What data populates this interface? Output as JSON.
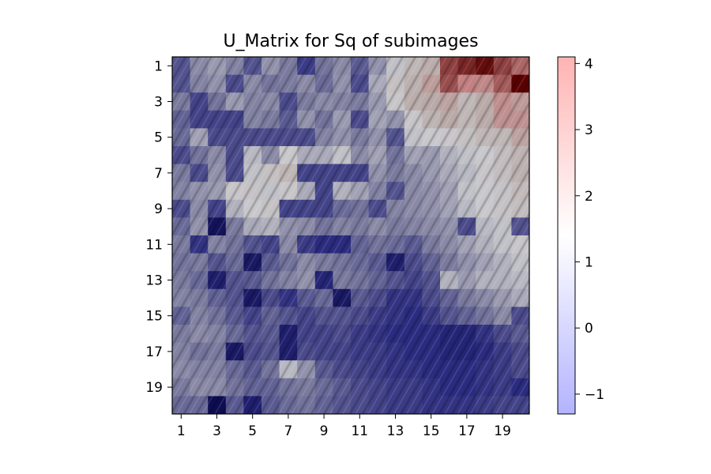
{
  "chart_data": {
    "type": "heatmap",
    "title": "U_Matrix for Sq of subimages",
    "xlabel": "",
    "ylabel": "",
    "x_ticks": [
      "1",
      "3",
      "5",
      "7",
      "9",
      "11",
      "13",
      "15",
      "17",
      "19"
    ],
    "y_ticks": [
      "1",
      "3",
      "5",
      "7",
      "9",
      "11",
      "13",
      "15",
      "17",
      "19"
    ],
    "grid": false,
    "colorbar": {
      "ticks": [
        "4",
        "3",
        "2",
        "1",
        "0",
        "−1"
      ],
      "tick_values": [
        4,
        3,
        2,
        1,
        0,
        -1
      ],
      "range": [
        -1.3,
        4.1
      ],
      "colors": {
        "low": "#b3b3ff",
        "mid": "#ffffff",
        "high": "#ffb3b3"
      }
    },
    "cell_palette": {
      "-1.5": "#0d0d52",
      "-1": "#2b2b80",
      "0": "#7a7a9e",
      "1": "#c8c8cc",
      "2": "#b9aaa8",
      "3": "#c28080",
      "4": "#5a0000"
    },
    "rows": [
      [
        -0.5,
        0.2,
        0.4,
        0.1,
        -0.5,
        0.3,
        0.0,
        -0.8,
        -0.1,
        0.2,
        -0.4,
        0.3,
        0.9,
        1.6,
        1.9,
        3.5,
        3.7,
        3.9,
        3.5,
        3.2
      ],
      [
        -0.5,
        0.1,
        0.3,
        -0.6,
        0.2,
        -0.1,
        0.0,
        0.2,
        -0.2,
        0.3,
        -0.6,
        0.6,
        1.3,
        1.8,
        2.3,
        3.4,
        3.0,
        2.8,
        3.3,
        4.1
      ],
      [
        0.0,
        -0.7,
        -0.1,
        0.4,
        0.1,
        0.2,
        -0.6,
        0.0,
        0.2,
        0.1,
        0.0,
        0.4,
        1.1,
        1.9,
        2.0,
        2.2,
        1.6,
        2.0,
        2.7,
        2.4
      ],
      [
        -0.3,
        -0.7,
        -0.7,
        -0.7,
        0.1,
        0.0,
        -0.4,
        0.3,
        -0.1,
        0.4,
        -0.6,
        0.5,
        0.3,
        1.1,
        1.7,
        2.0,
        1.6,
        2.0,
        2.6,
        2.6
      ],
      [
        -0.2,
        0.5,
        -0.6,
        -0.6,
        -0.6,
        -0.6,
        -0.6,
        -0.6,
        0.1,
        0.3,
        0.0,
        0.3,
        -0.5,
        0.9,
        1.0,
        1.1,
        1.3,
        1.6,
        1.6,
        2.2
      ],
      [
        -0.6,
        -0.1,
        0.2,
        -0.6,
        0.8,
        0.2,
        1.0,
        0.6,
        0.6,
        0.9,
        0.2,
        0.5,
        -0.1,
        0.5,
        0.4,
        0.7,
        0.9,
        1.0,
        1.4,
        1.7
      ],
      [
        0.0,
        -0.6,
        0.3,
        -0.6,
        0.9,
        1.3,
        1.6,
        -0.7,
        -0.7,
        -0.7,
        -0.7,
        0.3,
        0.0,
        0.2,
        0.4,
        0.6,
        0.8,
        1.1,
        1.4,
        1.8
      ],
      [
        0.1,
        0.3,
        0.4,
        1.1,
        1.2,
        0.9,
        1.1,
        0.6,
        -0.7,
        0.7,
        0.5,
        0.1,
        -0.5,
        0.2,
        0.3,
        0.5,
        0.9,
        1.0,
        1.2,
        1.5
      ],
      [
        -0.6,
        0.2,
        -0.7,
        0.7,
        1.0,
        1.2,
        -0.7,
        -0.7,
        -0.7,
        -0.2,
        -0.1,
        -0.6,
        0.1,
        0.2,
        0.3,
        0.5,
        0.8,
        1.0,
        1.2,
        1.4
      ],
      [
        -0.2,
        0.3,
        -1.4,
        0.0,
        0.6,
        0.7,
        0.3,
        0.2,
        -0.1,
        0.1,
        0.0,
        0.2,
        0.0,
        0.1,
        0.2,
        0.3,
        -0.6,
        0.8,
        0.9,
        -0.5
      ],
      [
        0.0,
        -0.9,
        0.1,
        -0.1,
        -0.5,
        -0.7,
        0.2,
        -0.8,
        -1.0,
        -1.0,
        -0.3,
        -0.1,
        -0.2,
        -0.4,
        0.0,
        0.2,
        0.5,
        0.7,
        0.9,
        1.1
      ],
      [
        -0.1,
        0.0,
        -0.5,
        -0.2,
        -1.3,
        -0.4,
        -0.1,
        0.2,
        0.0,
        -0.1,
        -0.2,
        -0.4,
        -1.2,
        -0.6,
        -0.3,
        0.0,
        0.3,
        0.5,
        0.7,
        0.9
      ],
      [
        0.0,
        -0.2,
        -1.2,
        -0.5,
        -0.4,
        -0.1,
        0.1,
        0.3,
        -1.1,
        0.0,
        -0.1,
        -0.3,
        -0.5,
        -0.7,
        -0.5,
        0.7,
        0.4,
        0.7,
        0.7,
        0.8
      ],
      [
        0.1,
        0.0,
        -0.3,
        -0.5,
        -1.3,
        -0.6,
        -0.9,
        -0.4,
        -0.2,
        -1.3,
        -0.4,
        -0.6,
        -0.9,
        -0.9,
        -0.6,
        -0.3,
        0.0,
        0.2,
        0.4,
        0.6
      ],
      [
        -0.3,
        0.1,
        -0.1,
        -0.4,
        -0.7,
        -0.3,
        -0.5,
        -0.7,
        -0.5,
        -0.5,
        -0.6,
        -0.8,
        -0.9,
        -1.0,
        -0.8,
        -0.5,
        -0.3,
        -0.1,
        0.2,
        -0.6
      ],
      [
        0.0,
        0.2,
        0.1,
        -0.2,
        -0.5,
        -0.4,
        -1.2,
        -0.7,
        -0.7,
        -0.6,
        -0.8,
        -0.9,
        -1.0,
        -1.0,
        -1.0,
        -1.1,
        -1.1,
        -0.9,
        -0.6,
        -0.4
      ],
      [
        0.1,
        -0.1,
        0.0,
        -1.3,
        -0.6,
        -0.5,
        -1.2,
        -0.6,
        -0.7,
        -0.7,
        -0.8,
        -0.8,
        -0.9,
        -1.0,
        -1.0,
        -1.1,
        -1.1,
        -1.0,
        -0.8,
        -0.6
      ],
      [
        0.2,
        0.1,
        0.1,
        -0.2,
        -0.4,
        -0.1,
        0.8,
        0.3,
        -0.4,
        -0.6,
        -0.7,
        -0.8,
        -0.9,
        -0.9,
        -1.0,
        -1.0,
        -1.0,
        -0.9,
        -0.8,
        -0.6
      ],
      [
        0.0,
        0.2,
        0.2,
        -0.1,
        -0.3,
        -0.3,
        -0.1,
        0.0,
        -0.2,
        -0.4,
        -0.6,
        -0.7,
        -0.8,
        -0.8,
        -0.9,
        -1.0,
        -1.0,
        -0.9,
        -0.8,
        -1.0
      ],
      [
        -0.2,
        -0.2,
        -1.6,
        -0.4,
        -1.2,
        -0.4,
        -0.2,
        -0.1,
        -0.3,
        -0.5,
        -0.6,
        -0.7,
        -0.8,
        -0.8,
        -0.9,
        -0.9,
        -0.9,
        -0.8,
        -0.7,
        -0.7
      ]
    ]
  }
}
